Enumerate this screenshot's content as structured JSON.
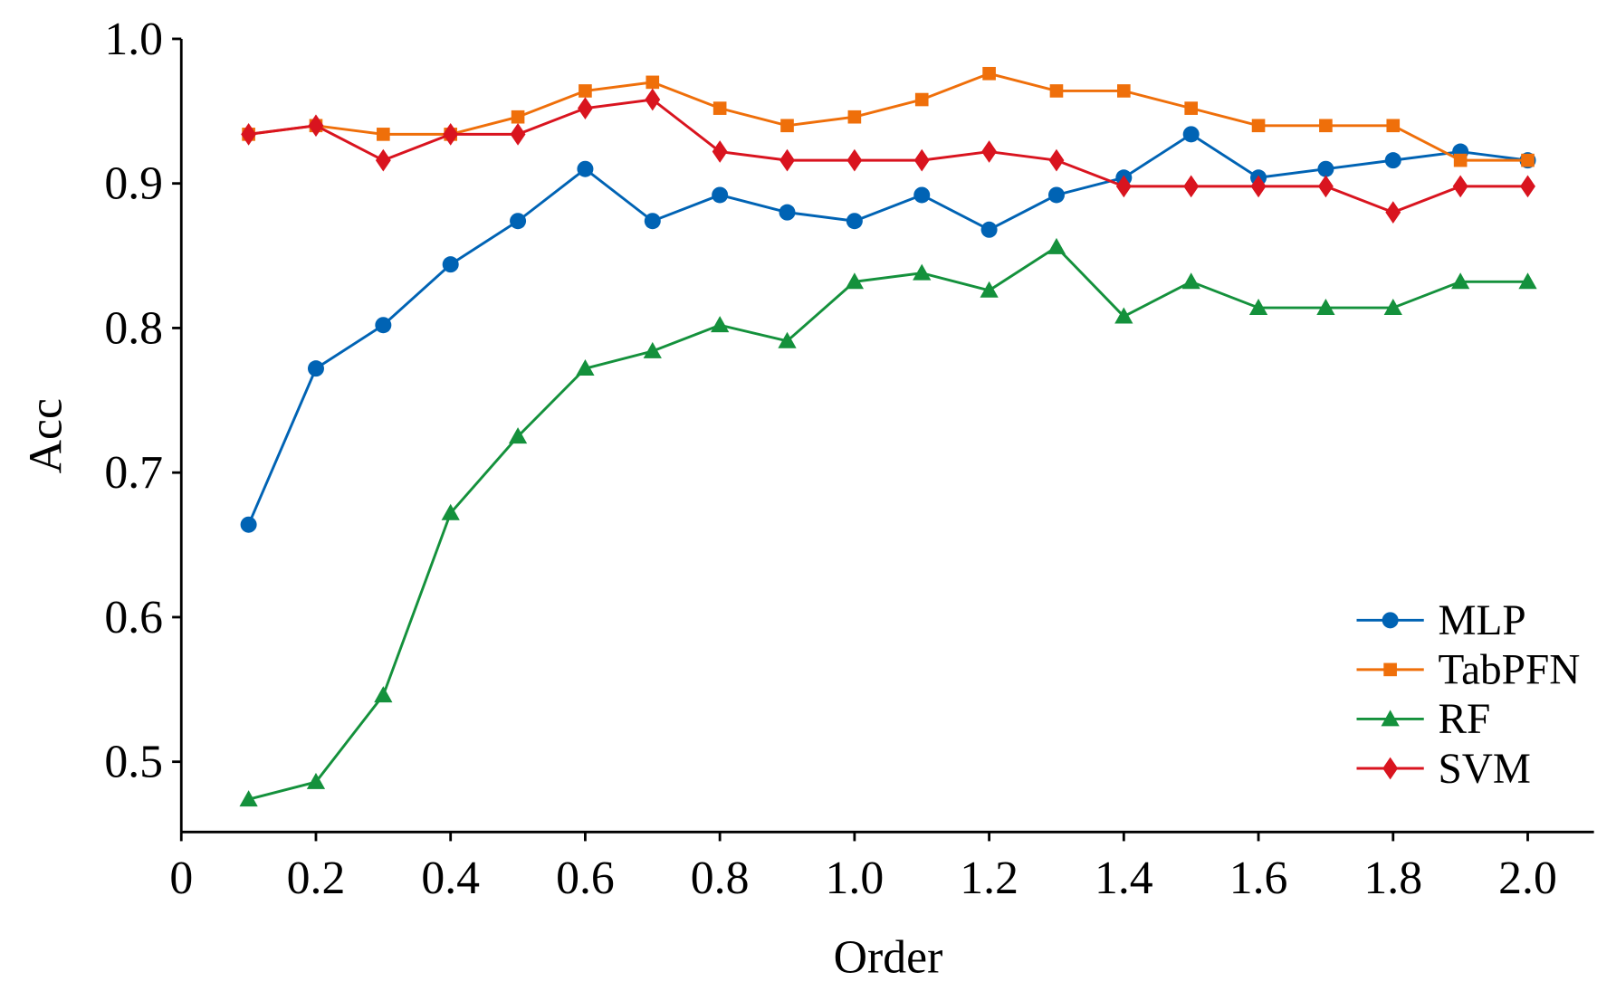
{
  "chart_data": {
    "type": "line",
    "title": "",
    "xlabel": "Order",
    "ylabel": "Acc",
    "xlim": [
      0,
      2.1
    ],
    "ylim": [
      0.45,
      1.0
    ],
    "xticks": [
      0,
      0.2,
      0.4,
      0.6,
      0.8,
      1.0,
      1.2,
      1.4,
      1.6,
      1.8,
      2.0
    ],
    "xtick_labels": [
      "0",
      "0.2",
      "0.4",
      "0.6",
      "0.8",
      "1.0",
      "1.2",
      "1.4",
      "1.6",
      "1.8",
      "2.0"
    ],
    "yticks": [
      0.5,
      0.6,
      0.7,
      0.8,
      0.9,
      1.0
    ],
    "ytick_labels": [
      "0.5",
      "0.6",
      "0.7",
      "0.8",
      "0.9",
      "1.0"
    ],
    "grid": false,
    "legend_position": "bottom-right",
    "x": [
      0.1,
      0.2,
      0.3,
      0.4,
      0.5,
      0.6,
      0.7,
      0.8,
      0.9,
      1.0,
      1.1,
      1.2,
      1.3,
      1.4,
      1.5,
      1.6,
      1.7,
      1.8,
      1.9,
      2.0
    ],
    "series": [
      {
        "name": "MLP",
        "color": "#0063b4",
        "marker": "circle",
        "values": [
          0.664,
          0.772,
          0.802,
          0.844,
          0.874,
          0.91,
          0.874,
          0.892,
          0.88,
          0.874,
          0.892,
          0.868,
          0.892,
          0.904,
          0.934,
          0.904,
          0.91,
          0.916,
          0.922,
          0.916
        ]
      },
      {
        "name": "TabPFN",
        "color": "#ef6f0a",
        "marker": "square",
        "values": [
          0.934,
          0.94,
          0.934,
          0.934,
          0.946,
          0.964,
          0.97,
          0.952,
          0.94,
          0.946,
          0.958,
          0.976,
          0.964,
          0.964,
          0.952,
          0.94,
          0.94,
          0.94,
          0.916,
          0.916
        ]
      },
      {
        "name": "RF",
        "color": "#14913c",
        "marker": "triangle",
        "values": [
          0.474,
          0.486,
          0.546,
          0.672,
          0.725,
          0.772,
          0.784,
          0.802,
          0.791,
          0.832,
          0.838,
          0.826,
          0.856,
          0.808,
          0.832,
          0.814,
          0.814,
          0.814,
          0.832,
          0.832
        ]
      },
      {
        "name": "SVM",
        "color": "#d9141f",
        "marker": "diamond",
        "values": [
          0.934,
          0.94,
          0.916,
          0.934,
          0.934,
          0.952,
          0.958,
          0.922,
          0.916,
          0.916,
          0.916,
          0.922,
          0.916,
          0.898,
          0.898,
          0.898,
          0.898,
          0.88,
          0.898,
          0.898
        ]
      }
    ]
  }
}
